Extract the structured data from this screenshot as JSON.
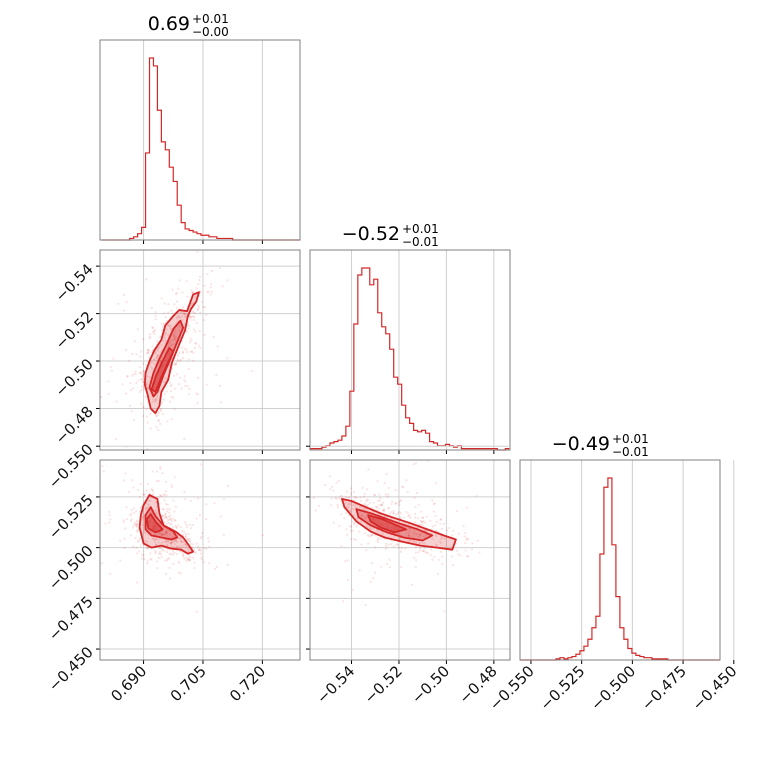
{
  "chart_data": {
    "type": "corner",
    "color": "#d62728",
    "params": [
      {
        "title_value": "0.69",
        "title_plus": "+0.01",
        "title_minus": "−0.00",
        "range": [
          0.679,
          0.7295
        ],
        "ticks": [
          0.69,
          0.705,
          0.72
        ],
        "tick_labels": [
          "0.690",
          "0.705",
          "0.720"
        ],
        "hist_x0": 0.6795,
        "hist_step": 0.001,
        "hist": [
          0,
          0,
          0,
          0,
          0,
          0,
          0,
          1,
          2,
          4,
          8,
          55,
          115,
          110,
          82,
          62,
          57,
          46,
          37,
          22,
          11,
          7,
          6,
          5,
          4,
          3,
          3,
          2,
          2,
          1,
          1,
          1,
          1,
          0,
          0,
          0,
          0,
          0,
          0,
          0,
          0,
          0,
          0,
          0,
          0,
          0,
          0,
          0,
          0,
          0
        ]
      },
      {
        "title_value": "−0.52",
        "title_plus": "+0.01",
        "title_minus": "−0.01",
        "range": [
          -0.5575,
          -0.4732
        ],
        "ticks": [
          -0.54,
          -0.52,
          -0.5,
          -0.48
        ],
        "tick_labels": [
          "−0.54",
          "−0.52",
          "−0.50",
          "−0.48"
        ],
        "hist_x0": -0.5575,
        "hist_step": 0.00168,
        "hist": [
          1,
          1,
          1,
          2,
          3,
          5,
          6,
          7,
          10,
          17,
          42,
          90,
          125,
          130,
          130,
          118,
          122,
          98,
          88,
          83,
          72,
          52,
          47,
          32,
          23,
          19,
          14,
          13,
          14,
          12,
          6,
          5,
          3,
          3,
          4,
          3,
          2,
          3,
          1,
          1,
          1,
          1,
          1,
          1,
          1,
          1,
          1,
          0,
          0,
          1
        ]
      },
      {
        "title_value": "−0.49",
        "title_plus": "+0.01",
        "title_minus": "−0.01",
        "range": [
          -0.5554,
          -0.4568
        ],
        "ticks": [
          -0.55,
          -0.525,
          -0.5,
          -0.475,
          -0.45
        ],
        "tick_labels": [
          "−0.550",
          "−0.525",
          "−0.500",
          "−0.475",
          "−0.450"
        ],
        "hist_x0": -0.5554,
        "hist_step": 0.00197,
        "hist": [
          0,
          0,
          0,
          0,
          0,
          0,
          0,
          0,
          0,
          1,
          2,
          1,
          2,
          3,
          5,
          8,
          12,
          18,
          28,
          38,
          92,
          150,
          158,
          100,
          55,
          28,
          18,
          10,
          6,
          4,
          3,
          2,
          2,
          1,
          1,
          1,
          1,
          0,
          0,
          0,
          0,
          0,
          0,
          0,
          0,
          0,
          0,
          0,
          0,
          0
        ]
      }
    ],
    "pairs": [
      {
        "row": 1,
        "col": 0,
        "ytick_labels": [
          "−0.48",
          "−0.50",
          "−0.52",
          "−0.54"
        ],
        "center": [
          0.6935,
          -0.5235
        ],
        "contours": [
          [
            [
              0.6903,
              -0.53
            ],
            [
              0.691,
              -0.534
            ],
            [
              0.6918,
              -0.54
            ],
            [
              0.693,
              -0.542
            ],
            [
              0.694,
              -0.539
            ],
            [
              0.6945,
              -0.533
            ],
            [
              0.6962,
              -0.528
            ],
            [
              0.6972,
              -0.5205
            ],
            [
              0.699,
              -0.513
            ],
            [
              0.7005,
              -0.507
            ],
            [
              0.7012,
              -0.501
            ],
            [
              0.702,
              -0.498
            ],
            [
              0.7033,
              -0.495
            ],
            [
              0.704,
              -0.491
            ],
            [
              0.7025,
              -0.492
            ],
            [
              0.701,
              -0.499
            ],
            [
              0.699,
              -0.4985
            ],
            [
              0.6975,
              -0.501
            ],
            [
              0.6955,
              -0.505
            ],
            [
              0.6945,
              -0.511
            ],
            [
              0.6927,
              -0.5155
            ],
            [
              0.6915,
              -0.52
            ],
            [
              0.6905,
              -0.525
            ]
          ],
          [
            [
              0.6915,
              -0.531
            ],
            [
              0.6925,
              -0.535
            ],
            [
              0.6935,
              -0.533
            ],
            [
              0.695,
              -0.526
            ],
            [
              0.6968,
              -0.519
            ],
            [
              0.6985,
              -0.512
            ],
            [
              0.7,
              -0.506
            ],
            [
              0.6993,
              -0.503
            ],
            [
              0.6975,
              -0.5065
            ],
            [
              0.6958,
              -0.513
            ],
            [
              0.694,
              -0.519
            ],
            [
              0.6925,
              -0.525
            ]
          ],
          [
            [
              0.692,
              -0.532
            ],
            [
              0.693,
              -0.533
            ],
            [
              0.6942,
              -0.528
            ],
            [
              0.6958,
              -0.522
            ],
            [
              0.6975,
              -0.516
            ],
            [
              0.6965,
              -0.5145
            ],
            [
              0.6948,
              -0.52
            ],
            [
              0.6932,
              -0.526
            ]
          ]
        ]
      },
      {
        "row": 2,
        "col": 0,
        "ytick_labels": [
          "−0.450",
          "−0.475",
          "−0.500",
          "−0.525",
          "−0.550"
        ],
        "center": [
          0.6925,
          -0.4885
        ],
        "contours": [
          [
            [
              0.69,
              -0.479
            ],
            [
              0.6915,
              -0.474
            ],
            [
              0.6935,
              -0.476
            ],
            [
              0.694,
              -0.483
            ],
            [
              0.695,
              -0.489
            ],
            [
              0.698,
              -0.492
            ],
            [
              0.7,
              -0.495
            ],
            [
              0.7015,
              -0.499
            ],
            [
              0.7025,
              -0.502
            ],
            [
              0.7012,
              -0.503
            ],
            [
              0.6995,
              -0.501
            ],
            [
              0.697,
              -0.5005
            ],
            [
              0.6945,
              -0.499
            ],
            [
              0.692,
              -0.5
            ],
            [
              0.69,
              -0.498
            ],
            [
              0.689,
              -0.49
            ],
            [
              0.6893,
              -0.484
            ]
          ],
          [
            [
              0.6905,
              -0.484
            ],
            [
              0.6918,
              -0.48
            ],
            [
              0.693,
              -0.4845
            ],
            [
              0.695,
              -0.489
            ],
            [
              0.6975,
              -0.492
            ],
            [
              0.6985,
              -0.495
            ],
            [
              0.697,
              -0.496
            ],
            [
              0.6945,
              -0.495
            ],
            [
              0.692,
              -0.494
            ],
            [
              0.6905,
              -0.491
            ]
          ],
          [
            [
              0.6908,
              -0.486
            ],
            [
              0.6918,
              -0.4835
            ],
            [
              0.693,
              -0.487
            ],
            [
              0.6948,
              -0.491
            ],
            [
              0.693,
              -0.4925
            ],
            [
              0.6912,
              -0.4905
            ]
          ]
        ]
      },
      {
        "row": 2,
        "col": 1,
        "ytick_labels": [
          "−0.450",
          "−0.475",
          "−0.500",
          "−0.525",
          "−0.550"
        ],
        "center": [
          -0.526,
          -0.487
        ],
        "contours": [
          [
            [
              -0.544,
              -0.476
            ],
            [
              -0.54,
              -0.477
            ],
            [
              -0.534,
              -0.48
            ],
            [
              -0.528,
              -0.483
            ],
            [
              -0.523,
              -0.485
            ],
            [
              -0.515,
              -0.488
            ],
            [
              -0.508,
              -0.491
            ],
            [
              -0.501,
              -0.494
            ],
            [
              -0.496,
              -0.496
            ],
            [
              -0.4975,
              -0.501
            ],
            [
              -0.504,
              -0.5
            ],
            [
              -0.511,
              -0.499
            ],
            [
              -0.519,
              -0.497
            ],
            [
              -0.526,
              -0.495
            ],
            [
              -0.532,
              -0.492
            ],
            [
              -0.538,
              -0.487
            ],
            [
              -0.543,
              -0.48
            ]
          ],
          [
            [
              -0.538,
              -0.481
            ],
            [
              -0.532,
              -0.483
            ],
            [
              -0.526,
              -0.4855
            ],
            [
              -0.52,
              -0.488
            ],
            [
              -0.512,
              -0.491
            ],
            [
              -0.506,
              -0.494
            ],
            [
              -0.51,
              -0.4965
            ],
            [
              -0.518,
              -0.495
            ],
            [
              -0.525,
              -0.4925
            ],
            [
              -0.532,
              -0.489
            ],
            [
              -0.537,
              -0.485
            ]
          ],
          [
            [
              -0.533,
              -0.484
            ],
            [
              -0.527,
              -0.486
            ],
            [
              -0.521,
              -0.489
            ],
            [
              -0.517,
              -0.491
            ],
            [
              -0.522,
              -0.4925
            ],
            [
              -0.528,
              -0.49
            ],
            [
              -0.532,
              -0.487
            ]
          ]
        ]
      }
    ],
    "grid": true,
    "filled_contours": true,
    "scatter_points": "faint"
  }
}
